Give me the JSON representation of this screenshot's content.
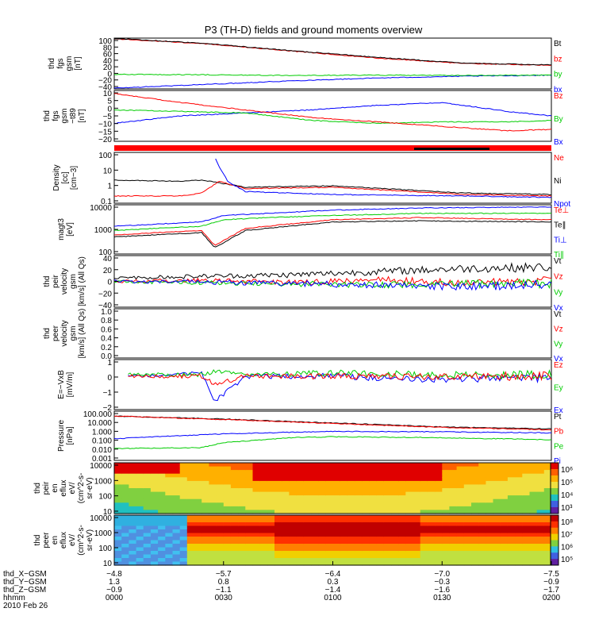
{
  "title": "P3 (TH-D) fields and ground moments overview",
  "chart_data": {
    "type": "line",
    "time_ticks": [
      "0000",
      "0030",
      "0100",
      "0130",
      "0200"
    ],
    "panels": [
      {
        "id": "fgs",
        "ylabel": [
          "thd",
          "fgs",
          "gsm",
          "[nT]"
        ],
        "ylim": [
          -40,
          100
        ],
        "yticks": [
          "100",
          "80",
          "60",
          "40",
          "20",
          "0",
          "−20",
          "−40"
        ],
        "legend": [
          {
            "name": "Bt",
            "color": "#000000"
          },
          {
            "name": "bz",
            "color": "#ff0000"
          },
          {
            "name": "by",
            "color": "#00cc00"
          },
          {
            "name": "bx",
            "color": "#0000ff"
          }
        ],
        "series": [
          {
            "name": "bx",
            "color": "#0000ff",
            "x": [
              0,
              0.2,
              0.4,
              0.6,
              0.8,
              1.0
            ],
            "y": [
              -38,
              -28,
              -18,
              -10,
              -5,
              -2
            ]
          },
          {
            "name": "by",
            "color": "#00cc00",
            "x": [
              0,
              0.2,
              0.4,
              0.6,
              0.8,
              1.0
            ],
            "y": [
              0,
              -1,
              -3,
              -2,
              -3,
              -2
            ]
          },
          {
            "name": "bz",
            "color": "#ff0000",
            "x": [
              0,
              0.2,
              0.4,
              0.6,
              0.8,
              1.0
            ],
            "y": [
              98,
              85,
              65,
              45,
              30,
              25
            ]
          },
          {
            "name": "Bt",
            "color": "#000000",
            "x": [
              0,
              0.2,
              0.4,
              0.6,
              0.8,
              1.0
            ],
            "y": [
              99,
              86,
              66,
              47,
              31,
              26
            ]
          }
        ]
      },
      {
        "id": "fgs_dsl",
        "ylabel": [
          "thd",
          "fgs",
          "gsm",
          "−t89",
          "[nT]"
        ],
        "ylim": [
          -22,
          12
        ],
        "yticks": [
          "10",
          "5",
          "0",
          "−5",
          "−10",
          "−15",
          "−20"
        ],
        "legend": [
          {
            "name": "Bz",
            "color": "#ff0000"
          },
          {
            "name": "By",
            "color": "#00cc00"
          },
          {
            "name": "Bx",
            "color": "#0000ff"
          }
        ],
        "series": [
          {
            "name": "Bx",
            "color": "#0000ff",
            "x": [
              0,
              0.15,
              0.3,
              0.45,
              0.6,
              0.75,
              0.9,
              1.0
            ],
            "y": [
              -10,
              -5,
              -3,
              -1,
              2,
              4,
              -2,
              -5
            ]
          },
          {
            "name": "By",
            "color": "#00cc00",
            "x": [
              0,
              0.15,
              0.3,
              0.45,
              0.6,
              0.75,
              0.9,
              1.0
            ],
            "y": [
              -1,
              -2,
              -3,
              -8,
              -10,
              -9,
              -9,
              -8
            ]
          },
          {
            "name": "Bz",
            "color": "#ff0000",
            "x": [
              0,
              0.15,
              0.3,
              0.45,
              0.6,
              0.75,
              0.9,
              1.0
            ],
            "y": [
              10,
              4,
              -1,
              -6,
              -9,
              -12,
              -15,
              -14
            ]
          }
        ]
      },
      {
        "id": "density",
        "ylabel": [
          "Density",
          "[cc]",
          "[cm−3]"
        ],
        "ylim": [
          -1,
          2.5
        ],
        "log": true,
        "yticks": [
          "100",
          "10",
          "1",
          "0.1"
        ],
        "legend": [
          {
            "name": "Ne",
            "color": "#ff0000"
          },
          {
            "name": "Ni",
            "color": "#000000"
          },
          {
            "name": "Npot",
            "color": "#0000ff"
          }
        ],
        "series": [
          {
            "name": "Ni",
            "color": "#000000",
            "x": [
              0,
              0.15,
              0.2,
              0.24,
              0.3,
              0.5,
              0.8,
              1.0
            ],
            "y": [
              0.6,
              0.5,
              0.6,
              0.4,
              0.1,
              0.2,
              -0.3,
              -0.4
            ]
          },
          {
            "name": "Ne",
            "color": "#ff0000",
            "x": [
              0,
              0.15,
              0.2,
              0.24,
              0.3,
              0.5,
              0.8,
              1.0
            ],
            "y": [
              -0.5,
              -0.5,
              -0.3,
              0.5,
              0.0,
              0.1,
              -0.4,
              -0.5
            ]
          },
          {
            "name": "Npot",
            "color": "#0000ff",
            "x": [
              0.23,
              0.24,
              0.26,
              0.3,
              0.5,
              0.8,
              1.0
            ],
            "y": [
              2.2,
              1.5,
              0.5,
              -0.2,
              -0.4,
              -0.5,
              -0.6
            ]
          }
        ]
      },
      {
        "id": "magt3",
        "ylabel": [
          "magt3",
          "[eV]"
        ],
        "ylim": [
          1.7,
          4.0
        ],
        "log": true,
        "yticks": [
          "10000",
          "1000",
          "100"
        ],
        "legend": [
          {
            "name": "Te⊥",
            "color": "#ff0000"
          },
          {
            "name": "Te∥",
            "color": "#000000"
          },
          {
            "name": "Ti⊥",
            "color": "#0000ff"
          },
          {
            "name": "Ti∥",
            "color": "#00cc00"
          }
        ],
        "series": [
          {
            "name": "Ti∥",
            "color": "#00cc00",
            "x": [
              0,
              0.2,
              0.25,
              0.35,
              0.5,
              0.7,
              1.0
            ],
            "y": [
              2.8,
              3.0,
              3.3,
              3.4,
              3.5,
              3.6,
              3.6
            ]
          },
          {
            "name": "Ti⊥",
            "color": "#0000ff",
            "x": [
              0,
              0.2,
              0.25,
              0.35,
              0.5,
              0.7,
              1.0
            ],
            "y": [
              3.0,
              3.2,
              3.5,
              3.6,
              3.75,
              3.85,
              3.9
            ]
          },
          {
            "name": "Te∥",
            "color": "#000000",
            "x": [
              0,
              0.2,
              0.23,
              0.3,
              0.5,
              0.7,
              1.0
            ],
            "y": [
              2.5,
              2.7,
              2.0,
              2.8,
              3.2,
              3.25,
              3.2
            ]
          },
          {
            "name": "Te⊥",
            "color": "#ff0000",
            "x": [
              0,
              0.2,
              0.23,
              0.3,
              0.5,
              0.7,
              1.0
            ],
            "y": [
              2.6,
              2.8,
              2.1,
              2.9,
              3.3,
              3.4,
              3.3
            ]
          }
        ]
      },
      {
        "id": "peir_vel",
        "ylabel": [
          "thd",
          "peir",
          "velocity",
          "gsm",
          "[km/s] (All Qs)"
        ],
        "ylim": [
          -40,
          40
        ],
        "yticks": [
          "40",
          "20",
          "0",
          "−20",
          "−40"
        ],
        "legend": [
          {
            "name": "Vt",
            "color": "#000000"
          },
          {
            "name": "Vz",
            "color": "#ff0000"
          },
          {
            "name": "Vy",
            "color": "#00cc00"
          },
          {
            "name": "Vx",
            "color": "#0000ff"
          }
        ],
        "series": [
          {
            "name": "Vt",
            "color": "#000000",
            "x": [
              0,
              0.2,
              0.4,
              0.6,
              0.8,
              1.0
            ],
            "y": [
              5,
              8,
              10,
              15,
              20,
              22
            ]
          },
          {
            "name": "Vz",
            "color": "#ff0000",
            "x": [
              0,
              0.2,
              0.4,
              0.6,
              0.8,
              1.0
            ],
            "y": [
              0,
              2,
              -2,
              3,
              -3,
              2
            ]
          },
          {
            "name": "Vy",
            "color": "#00cc00",
            "x": [
              0,
              0.2,
              0.4,
              0.6,
              0.8,
              1.0
            ],
            "y": [
              0,
              -2,
              -4,
              -5,
              -4,
              -3
            ]
          },
          {
            "name": "Vx",
            "color": "#0000ff",
            "x": [
              0,
              0.2,
              0.4,
              0.6,
              0.8,
              1.0
            ],
            "y": [
              0,
              -1,
              -3,
              -6,
              -8,
              -5
            ]
          }
        ]
      },
      {
        "id": "peer_vel",
        "ylabel": [
          "thd",
          "peer",
          "velocity",
          "gsm",
          "[km/s] (All Qs)"
        ],
        "ylim": [
          0,
          1.0
        ],
        "yticks": [
          "1.0",
          "0.8",
          "0.6",
          "0.4",
          "0.2",
          "0.0"
        ],
        "legend": [
          {
            "name": "Vt",
            "color": "#000000"
          },
          {
            "name": "Vz",
            "color": "#ff0000"
          },
          {
            "name": "Vy",
            "color": "#00cc00"
          },
          {
            "name": "Vx",
            "color": "#0000ff"
          }
        ],
        "series": []
      },
      {
        "id": "efield",
        "ylabel": [
          "E=−VxB",
          "[mV/m]"
        ],
        "ylim": [
          -2,
          1
        ],
        "yticks": [
          "1",
          "0",
          "−1",
          "−2"
        ],
        "legend": [
          {
            "name": "Ez",
            "color": "#ff0000"
          },
          {
            "name": "Ey",
            "color": "#00cc00"
          },
          {
            "name": "Ex",
            "color": "#0000ff"
          }
        ],
        "series": [
          {
            "name": "Ex",
            "color": "#0000ff",
            "x": [
              0.03,
              0.2,
              0.23,
              0.3,
              0.5,
              0.7,
              1.0
            ],
            "y": [
              0,
              0.2,
              -1.5,
              0,
              0,
              -0.2,
              -0.1
            ]
          },
          {
            "name": "Ey",
            "color": "#00cc00",
            "x": [
              0.03,
              0.2,
              0.23,
              0.3,
              0.5,
              0.7,
              1.0
            ],
            "y": [
              0.1,
              0.1,
              0.3,
              0.1,
              0.2,
              0.1,
              0.1
            ]
          },
          {
            "name": "Ez",
            "color": "#ff0000",
            "x": [
              0.03,
              0.2,
              0.23,
              0.3,
              0.5,
              0.7,
              1.0
            ],
            "y": [
              0,
              0,
              -0.5,
              0,
              0,
              0,
              0
            ]
          }
        ]
      },
      {
        "id": "pressure",
        "ylabel": [
          "Pressure",
          "[nPa]"
        ],
        "ylim": [
          -3,
          2
        ],
        "log": true,
        "yticks": [
          "100.000",
          "10.000",
          "1.000",
          "0.100",
          "0.010",
          "0.001"
        ],
        "legend": [
          {
            "name": "Pt",
            "color": "#000000"
          },
          {
            "name": "Pb",
            "color": "#ff0000"
          },
          {
            "name": "Pe",
            "color": "#00cc00"
          },
          {
            "name": "Pi",
            "color": "#0000ff"
          }
        ],
        "series": [
          {
            "name": "Pt",
            "color": "#000000",
            "x": [
              0,
              0.25,
              0.5,
              0.75,
              1.0
            ],
            "y": [
              1.5,
              1.2,
              0.8,
              0.4,
              0.2
            ]
          },
          {
            "name": "Pb",
            "color": "#ff0000",
            "x": [
              0,
              0.25,
              0.5,
              0.75,
              1.0
            ],
            "y": [
              1.5,
              1.15,
              0.75,
              0.35,
              0.1
            ]
          },
          {
            "name": "Pi",
            "color": "#0000ff",
            "x": [
              0,
              0.25,
              0.5,
              0.75,
              1.0
            ],
            "y": [
              -0.8,
              -0.3,
              -0.05,
              -0.1,
              -0.2
            ]
          },
          {
            "name": "Pe",
            "color": "#00cc00",
            "x": [
              0,
              0.2,
              0.25,
              0.4,
              0.5,
              0.75,
              1.0
            ],
            "y": [
              -1.8,
              -1.7,
              -1.2,
              -0.7,
              -0.6,
              -0.7,
              -0.9
            ]
          }
        ]
      },
      {
        "id": "peir_spec",
        "type": "heatmap",
        "ylabel": [
          "thd",
          "peir",
          "en",
          "eflux",
          "eV/",
          "(cm^2-s-",
          "sr-eV)"
        ],
        "yticks": [
          "10000",
          "1000",
          "100",
          "10"
        ],
        "cbar": [
          "10⁶",
          "10⁵",
          "10⁴",
          "10³"
        ]
      },
      {
        "id": "peer_spec",
        "type": "heatmap",
        "ylabel": [
          "thd",
          "peer",
          "en",
          "eflux",
          "eV/",
          "(cm^2-s-",
          "sr-eV)"
        ],
        "yticks": [
          "10000",
          "1000",
          "100",
          "10"
        ],
        "cbar": [
          "10⁸",
          "10⁷",
          "10⁶",
          "10⁵"
        ]
      }
    ],
    "ephemeris": [
      {
        "label": "thd_X−GSM",
        "values": [
          "−4.8",
          "−5.7",
          "−6.4",
          "−7.0",
          "−7.5"
        ]
      },
      {
        "label": "thd_Y−GSM",
        "values": [
          "1.3",
          "0.8",
          "0.3",
          "−0.3",
          "−0.9"
        ]
      },
      {
        "label": "thd_Z−GSM",
        "values": [
          "−0.9",
          "−1.1",
          "−1.4",
          "−1.6",
          "−1.7"
        ]
      },
      {
        "label": "hhmm",
        "values": [
          "0000",
          "0030",
          "0100",
          "0130",
          "0200"
        ]
      }
    ],
    "date": "2010 Feb 26"
  }
}
